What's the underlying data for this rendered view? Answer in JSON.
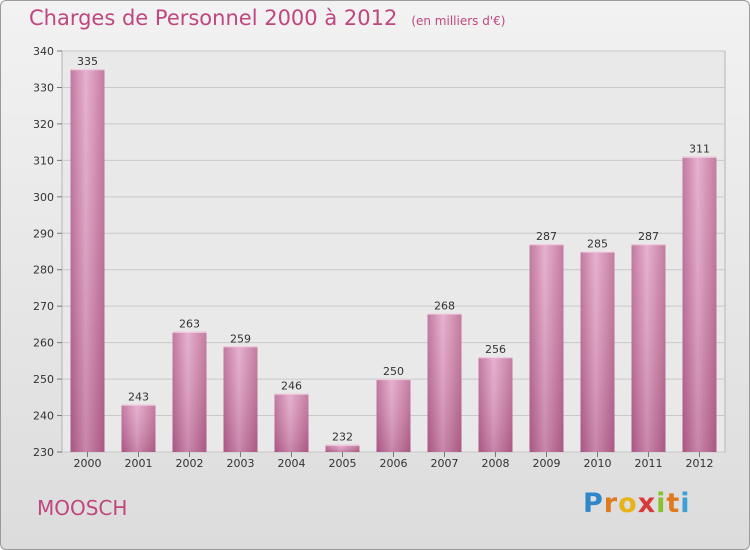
{
  "header": {
    "title": "Charges de Personnel 2000 à 2012",
    "unit": "(en milliers d'€)"
  },
  "footer": {
    "commune": "MOOSCH",
    "logo_letters": [
      "P",
      "r",
      "o",
      "x",
      "i",
      "t",
      "i"
    ],
    "logo_colors": [
      "#2f86c8",
      "#e07a1f",
      "#e8b21a",
      "#d83a3a",
      "#8cbf2e",
      "#e07a1f",
      "#3aa0d8"
    ]
  },
  "chart_data": {
    "type": "bar",
    "title": "Charges de Personnel 2000 à 2012",
    "categories": [
      "2000",
      "2001",
      "2002",
      "2003",
      "2004",
      "2005",
      "2006",
      "2007",
      "2008",
      "2009",
      "2010",
      "2011",
      "2012"
    ],
    "values": [
      335,
      243,
      263,
      259,
      246,
      232,
      250,
      268,
      256,
      287,
      285,
      287,
      311
    ],
    "data_labels": [
      "335",
      "243",
      "263",
      "259",
      "246",
      "232",
      "250",
      "268",
      "256",
      "287",
      "285",
      "287",
      "311"
    ],
    "ylim": [
      230,
      340
    ],
    "yticks": [
      230,
      240,
      250,
      260,
      270,
      280,
      290,
      300,
      310,
      320,
      330,
      340
    ],
    "grid": true,
    "bar_color": "#c46c9d",
    "xlabel": "",
    "ylabel": ""
  }
}
